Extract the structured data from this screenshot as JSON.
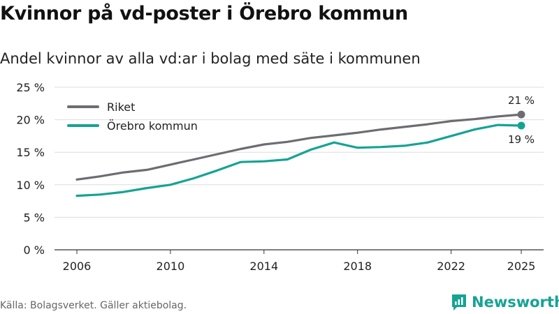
{
  "page": {
    "title": "Kvinnor på vd-poster i Örebro kommun",
    "subtitle": "Andel kvinnor av alla vd:ar i bolag med säte i kommunen",
    "source": "Källa: Bolagsverket. Gäller aktiebolag.",
    "brand": "Newsworthy",
    "brand_icon": "newsworthy-logo-icon"
  },
  "chart_data": {
    "type": "line",
    "title": "Kvinnor på vd-poster i Örebro kommun",
    "subtitle": "Andel kvinnor av alla vd:ar i bolag med säte i kommunen",
    "xlabel": "",
    "ylabel": "",
    "x": [
      2006,
      2007,
      2008,
      2009,
      2010,
      2011,
      2012,
      2013,
      2014,
      2015,
      2016,
      2017,
      2018,
      2019,
      2020,
      2021,
      2022,
      2023,
      2024,
      2025
    ],
    "xlim": [
      2006,
      2025
    ],
    "ylim": [
      0,
      25
    ],
    "x_ticks": [
      2006,
      2010,
      2014,
      2018,
      2022,
      2025
    ],
    "x_tick_labels": [
      "2006",
      "2010",
      "2014",
      "2018",
      "2022",
      "2025"
    ],
    "y_ticks": [
      0,
      5,
      10,
      15,
      20,
      25
    ],
    "y_tick_labels": [
      "0 %",
      "5 %",
      "10 %",
      "15 %",
      "20 %",
      "25 %"
    ],
    "grid": true,
    "legend_position": "top-left",
    "series": [
      {
        "name": "Riket",
        "color": "#6e6c72",
        "values": [
          10.8,
          11.3,
          11.9,
          12.3,
          13.1,
          13.9,
          14.7,
          15.5,
          16.2,
          16.6,
          17.2,
          17.6,
          18.0,
          18.5,
          18.9,
          19.3,
          19.8,
          20.1,
          20.5,
          20.8
        ],
        "end_label": "21 %"
      },
      {
        "name": "Örebro kommun",
        "color": "#16a393",
        "values": [
          8.3,
          8.5,
          8.9,
          9.5,
          10.0,
          11.0,
          12.2,
          13.5,
          13.6,
          13.9,
          15.4,
          16.5,
          15.7,
          15.8,
          16.0,
          16.5,
          17.5,
          18.5,
          19.2,
          19.1
        ],
        "end_label": "19 %"
      }
    ]
  }
}
